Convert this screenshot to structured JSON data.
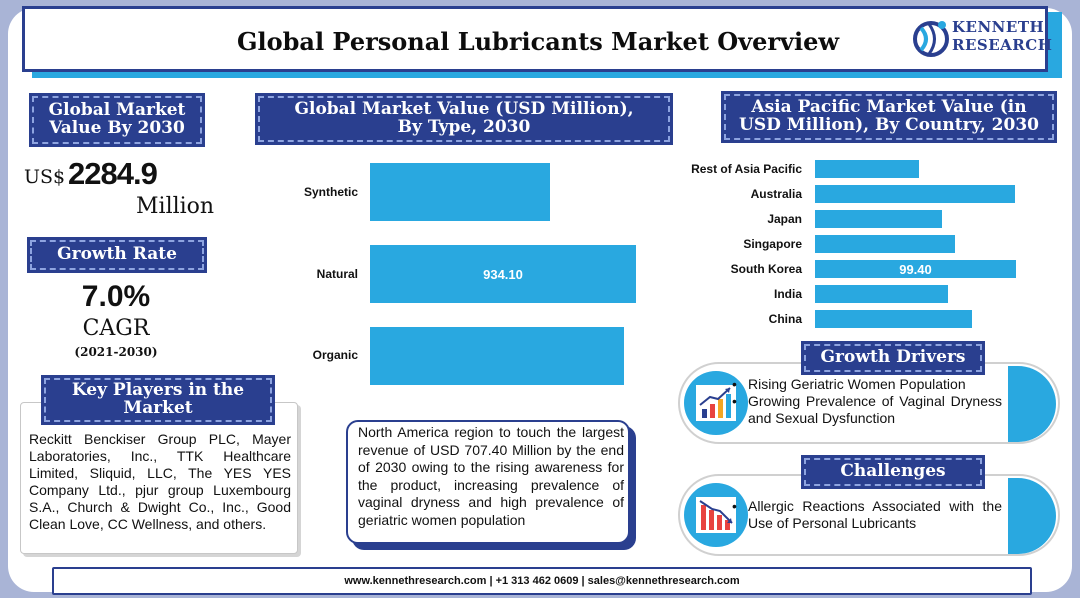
{
  "title": "Global Personal Lubricants Market Overview",
  "logo": {
    "line1": "KENNETH",
    "line2": "RESEARCH"
  },
  "market_value": {
    "heading_line1": "Global Market",
    "heading_line2": "Value By 2030",
    "currency": "US$",
    "amount": "2284.9",
    "unit": "Million"
  },
  "growth": {
    "heading": "Growth Rate",
    "value": "7.0%",
    "label": "CAGR",
    "period": "(2021-2030)"
  },
  "key_players": {
    "heading_line1": "Key Players in the",
    "heading_line2": "Market",
    "text": "Reckitt Benckiser Group PLC, Mayer Laboratories, Inc., TTK Healthcare Limited, Sliquid, LLC, The YES YES Company Ltd., pjur group Luxembourg S.A., Church & Dwight Co., Inc., Good Clean Love, CC Wellness, and others."
  },
  "type_chart_heading": {
    "line1": "Global Market Value (USD Million),",
    "line2": "By Type, 2030"
  },
  "country_chart_heading": {
    "line1": "Asia Pacific Market Value (in",
    "line2": "USD Million), By Country, 2030"
  },
  "chart_data": [
    {
      "type": "bar",
      "orientation": "horizontal",
      "title": "Global Market Value (USD Million), By Type, 2030",
      "categories": [
        "Synthetic",
        "Natural",
        "Organic"
      ],
      "values": [
        633,
        934.1,
        891
      ],
      "labels": [
        "",
        "934.10",
        ""
      ],
      "xlim": [
        0,
        934.1
      ],
      "color": "#29a8e0"
    },
    {
      "type": "bar",
      "orientation": "horizontal",
      "title": "Asia Pacific Market Value (in USD Million), By Country, 2030",
      "categories": [
        "Rest of Asia Pacific",
        "Australia",
        "Japan",
        "Singapore",
        "South Korea",
        "India",
        "China"
      ],
      "values": [
        51.4,
        98.9,
        62.9,
        69.3,
        99.4,
        65.8,
        77.6
      ],
      "labels": [
        "",
        "",
        "",
        "",
        "99.40",
        "",
        ""
      ],
      "xlim": [
        0,
        99.4
      ],
      "color": "#29a8e0"
    }
  ],
  "north_america_note": "North America region to touch the largest revenue of USD 707.40 Million by the end of 2030 owing to the rising awareness for the product, increasing prevalence of vaginal dryness and high prevalence of geriatric women population",
  "growth_drivers": {
    "heading": "Growth Drivers",
    "items": [
      "Rising Geriatric Women Population",
      "Growing Prevalence of Vaginal Dryness and Sexual Dysfunction"
    ]
  },
  "challenges": {
    "heading": "Challenges",
    "items": [
      "Allergic Reactions Associated with the Use of Personal Lubricants"
    ]
  },
  "footer": "www.kennethresearch.com | +1 313 462 0609 | sales@kennethresearch.com",
  "colors": {
    "navy": "#2a3f8f",
    "accent": "#29a8e0",
    "frame": "#a9b4d6"
  }
}
